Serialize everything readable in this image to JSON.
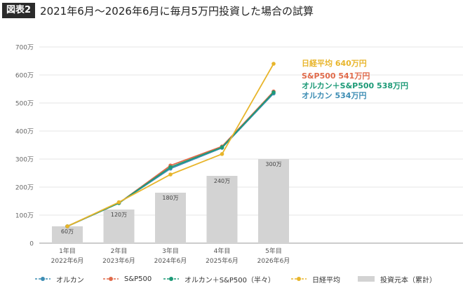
{
  "header": {
    "badge": "図表2",
    "title": "2021年6月～2026年6月に毎月5万円投資した場合の試算"
  },
  "chart_data": {
    "type": "bar+line",
    "title": "2021年6月～2026年6月に毎月5万円投資した場合の試算",
    "categories": [
      [
        "1年目",
        "2022年6月"
      ],
      [
        "2年目",
        "2023年6月"
      ],
      [
        "3年目",
        "2024年6月"
      ],
      [
        "4年目",
        "2025年6月"
      ],
      [
        "5年目",
        "2026年6月"
      ]
    ],
    "ylim": [
      0,
      700
    ],
    "yticks": [
      0,
      100,
      200,
      300,
      400,
      500,
      600,
      700
    ],
    "ytick_labels": [
      "0",
      "100万",
      "200万",
      "300万",
      "400万",
      "500万",
      "600万",
      "700万"
    ],
    "grid": true,
    "bars": {
      "name": "投資元本（累計）",
      "color": "#d3d3d3",
      "values": [
        60,
        120,
        180,
        240,
        300
      ],
      "labels": [
        "60万",
        "120万",
        "180万",
        "240万",
        "300万"
      ]
    },
    "series": [
      {
        "name": "オルカン",
        "color": "#3d8db4",
        "values": [
          60,
          143,
          266,
          340,
          534
        ]
      },
      {
        "name": "S&P500",
        "color": "#e06a4a",
        "values": [
          60,
          143,
          277,
          345,
          541
        ]
      },
      {
        "name": "オルカン＋S&P500（半々）",
        "color": "#1d9a77",
        "values": [
          60,
          143,
          271,
          342,
          538
        ]
      },
      {
        "name": "日経平均",
        "color": "#e8b52b",
        "values": [
          60,
          146,
          245,
          318,
          640
        ]
      }
    ],
    "end_labels": [
      {
        "text": "日経平均  640万円",
        "color": "#e8b52b"
      },
      {
        "text": "S&P500 541万円",
        "color": "#e06a4a"
      },
      {
        "text": "オルカン＋S&P500 538万円",
        "color": "#1d9a77"
      },
      {
        "text": "オルカン 534万円",
        "color": "#3d8db4"
      }
    ],
    "legend_position": "bottom"
  }
}
